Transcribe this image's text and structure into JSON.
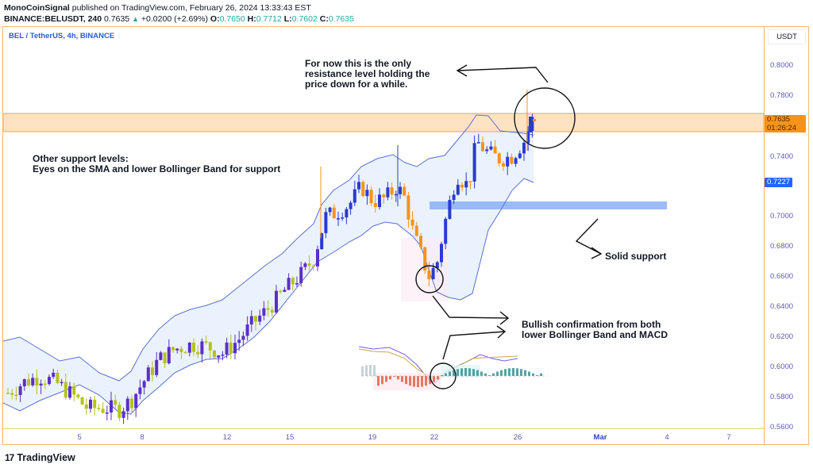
{
  "header": {
    "author": "MonoCoinSignal",
    "published_text": "published on TradingView.com, February 26, 2024 13:33:43 EST",
    "symbol_full": "BINANCE:BELUSDT, 240",
    "last": "0.7635",
    "change_arrow": "▲",
    "change": "+0.0200 (+2.69%)",
    "ohlc": [
      {
        "k": "O:",
        "v": "0.7650"
      },
      {
        "k": "H:",
        "v": "0.7712"
      },
      {
        "k": "L:",
        "v": "0.7602"
      },
      {
        "k": "C:",
        "v": "0.7635"
      }
    ]
  },
  "chart": {
    "legend_title": "BEL / TetherUS, 4h, BINANCE",
    "currency": "USDT",
    "price_ticks": [
      "0.8000",
      "0.7800",
      "0.7400",
      "0.7000",
      "0.6800",
      "0.6600",
      "0.6400",
      "0.6200",
      "0.6000",
      "0.5800",
      "0.5600"
    ],
    "price_tag": {
      "value": "0.7635",
      "countdown": "01:26:24"
    },
    "upper_tag_hidden": "0.7650",
    "bb_tag": "0.7227",
    "time_ticks": [
      "5",
      "8",
      "12",
      "15",
      "19",
      "22",
      "26",
      "Mar",
      "4",
      "7"
    ]
  },
  "annotations": {
    "resistance_note": "For now this is the only\nresistance level holding the\nprice down for a while.",
    "support_note": "Other support levels:\nEyes on the SMA and lower Bollinger Band for support",
    "solid_support": "Solid support",
    "bullish_note": "Bullish confirmation from both\nlower Bollinger Band and MACD"
  },
  "footer": {
    "logo_mark": "17",
    "logo_text": "TradingView"
  },
  "colors": {
    "bull": "#2a3bd1",
    "bear": "#f7931a",
    "bull_alt": "#5b2fc9",
    "bear_alt": "#b5c21a",
    "bb_line": "#5b6fd6",
    "bb_fill": "#eaf2fd",
    "resistance": "#fde3c4",
    "resistance_border": "#f7a64a",
    "support": "#8fb4f5"
  },
  "chart_data": {
    "type": "candlestick",
    "title": "BEL / TetherUS, 4h, BINANCE",
    "xlabel": "",
    "ylabel": "USDT",
    "ylim": [
      0.56,
      0.8
    ],
    "x_ticks": [
      "5",
      "8",
      "12",
      "15",
      "19",
      "22",
      "26",
      "Mar",
      "4",
      "7"
    ],
    "y_ticks": [
      0.8,
      0.78,
      0.74,
      0.7,
      0.68,
      0.66,
      0.64,
      0.62,
      0.6,
      0.58,
      0.56
    ],
    "last_price": 0.7635,
    "ohlc_last": {
      "open": 0.765,
      "high": 0.7712,
      "low": 0.7602,
      "close": 0.7635
    },
    "lower_bollinger_last": 0.7227,
    "resistance_zone": [
      0.7563,
      0.7684
    ],
    "support_zone": [
      0.7055,
      0.7105
    ],
    "series": [
      {
        "name": "close_path_approx",
        "points": [
          [
            10,
            0.583
          ],
          [
            30,
            0.59
          ],
          [
            50,
            0.594
          ],
          [
            70,
            0.59
          ],
          [
            90,
            0.582
          ],
          [
            110,
            0.573
          ],
          [
            130,
            0.573
          ],
          [
            150,
            0.572
          ],
          [
            165,
            0.578
          ],
          [
            180,
            0.59
          ],
          [
            200,
            0.605
          ],
          [
            220,
            0.612
          ],
          [
            240,
            0.615
          ],
          [
            260,
            0.614
          ],
          [
            280,
            0.609
          ],
          [
            300,
            0.618
          ],
          [
            320,
            0.63
          ],
          [
            340,
            0.64
          ],
          [
            360,
            0.652
          ],
          [
            380,
            0.662
          ],
          [
            395,
            0.672
          ],
          [
            410,
            0.7
          ],
          [
            425,
            0.703
          ],
          [
            440,
            0.708
          ],
          [
            455,
            0.72
          ],
          [
            470,
            0.71
          ],
          [
            485,
            0.712
          ],
          [
            500,
            0.72
          ],
          [
            510,
            0.712
          ],
          [
            520,
            0.69
          ],
          [
            530,
            0.675
          ],
          [
            540,
            0.66
          ],
          [
            550,
            0.668
          ],
          [
            560,
            0.695
          ],
          [
            575,
            0.728
          ],
          [
            590,
            0.72
          ],
          [
            600,
            0.75
          ],
          [
            615,
            0.742
          ],
          [
            630,
            0.738
          ],
          [
            645,
            0.74
          ],
          [
            660,
            0.75
          ],
          [
            670,
            0.764
          ]
        ]
      }
    ],
    "annotations": [
      "For now this is the only resistance level holding the price down for a while.",
      "Other support levels: Eyes on the SMA and lower Bollinger Band for support",
      "Solid support",
      "Bullish confirmation from both lower Bollinger Band and MACD"
    ]
  }
}
